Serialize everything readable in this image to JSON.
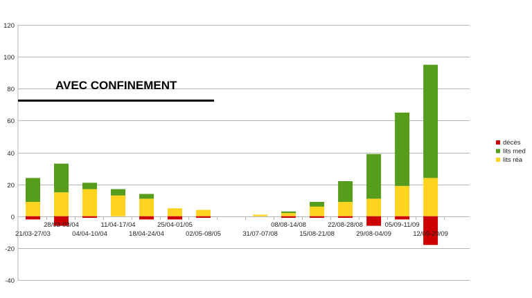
{
  "chart_data": {
    "type": "bar",
    "stacked": true,
    "title": "",
    "annotation": "AVEC CONFINEMENT",
    "xlabel": "",
    "ylabel": "",
    "ylim": [
      -40,
      120
    ],
    "yticks": [
      -40,
      -20,
      0,
      20,
      40,
      60,
      80,
      100,
      120
    ],
    "grid": true,
    "legend_position": "right",
    "categories": [
      "21/03-27/03",
      "28/03-03/04",
      "04/04-10/04",
      "11/04-17/04",
      "18/04-24/04",
      "25/04-01/05",
      "02/05-08/05",
      "",
      "31/07-07/08",
      "08/08-14/08",
      "15/08-21/08",
      "22/08-28/08",
      "29/08-04/09",
      "05/09-11/09",
      "12/09-20/09"
    ],
    "series": [
      {
        "name": "décès",
        "color": "#cc0000",
        "values": [
          -2,
          -6,
          -1,
          0,
          -2,
          -2,
          -1,
          null,
          0,
          -1,
          -1,
          -1,
          -6,
          -2,
          -18
        ]
      },
      {
        "name": "lits med",
        "color": "#579d1c",
        "values": [
          15,
          18,
          4,
          4,
          3,
          0,
          0,
          null,
          0,
          1,
          3,
          13,
          28,
          46,
          71
        ]
      },
      {
        "name": "lits réa",
        "color": "#ffd320",
        "values": [
          9,
          15,
          17,
          13,
          11,
          5,
          4,
          null,
          1,
          2,
          6,
          9,
          11,
          19,
          24
        ]
      }
    ]
  }
}
